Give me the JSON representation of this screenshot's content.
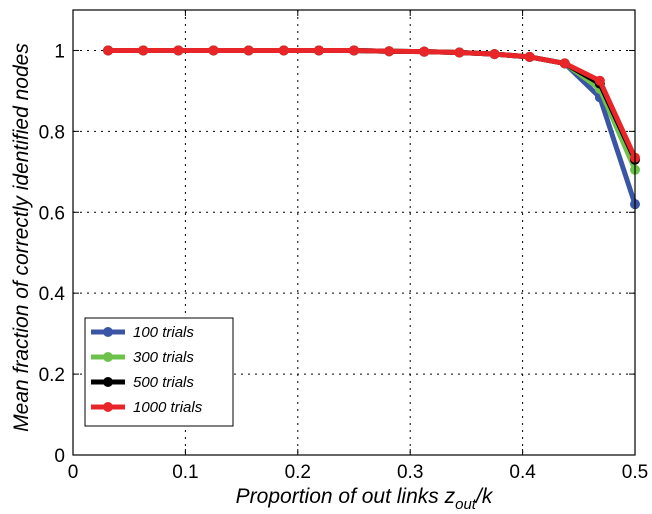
{
  "chart_data": {
    "type": "line",
    "xlabel": {
      "main": "Proportion of out links z",
      "sub": "out",
      "tail": "/k"
    },
    "ylabel": "Mean fraction of correctly identified nodes",
    "xlim": [
      0,
      0.5
    ],
    "ylim": [
      0,
      1.1
    ],
    "grid": true,
    "legend_position": "bottom-left",
    "x_ticks": [
      0,
      0.1,
      0.2,
      0.3,
      0.4,
      0.5
    ],
    "x_tick_labels": [
      "0",
      "0.1",
      "0.2",
      "0.3",
      "0.4",
      "0.5"
    ],
    "y_ticks": [
      0,
      0.2,
      0.4,
      0.6,
      0.8,
      1
    ],
    "y_tick_labels": [
      "0",
      "0.2",
      "0.4",
      "0.6",
      "0.8",
      "1"
    ],
    "x": [
      0.03125,
      0.0625,
      0.09375,
      0.125,
      0.15625,
      0.1875,
      0.21875,
      0.25,
      0.28125,
      0.3125,
      0.34375,
      0.375,
      0.40625,
      0.4375,
      0.46875,
      0.5
    ],
    "series": [
      {
        "name": "100 trials",
        "color": "#3a55a4",
        "values": [
          1,
          1,
          1,
          1,
          1,
          1,
          1,
          1,
          0.998,
          0.997,
          0.995,
          0.991,
          0.984,
          0.968,
          0.884,
          0.62
        ]
      },
      {
        "name": "300 trials",
        "color": "#6cc24a",
        "values": [
          1,
          1,
          1,
          1,
          1,
          1,
          1,
          1,
          0.998,
          0.997,
          0.995,
          0.991,
          0.984,
          0.968,
          0.905,
          0.705
        ]
      },
      {
        "name": "500 trials",
        "color": "#000000",
        "values": [
          1,
          1,
          1,
          1,
          1,
          1,
          1,
          1,
          0.998,
          0.997,
          0.995,
          0.991,
          0.984,
          0.968,
          0.918,
          0.73
        ]
      },
      {
        "name": "1000 trials",
        "color": "#e8262a",
        "values": [
          1,
          1,
          1,
          1,
          1,
          1,
          1,
          1,
          0.998,
          0.997,
          0.995,
          0.991,
          0.984,
          0.968,
          0.925,
          0.735
        ]
      }
    ]
  }
}
